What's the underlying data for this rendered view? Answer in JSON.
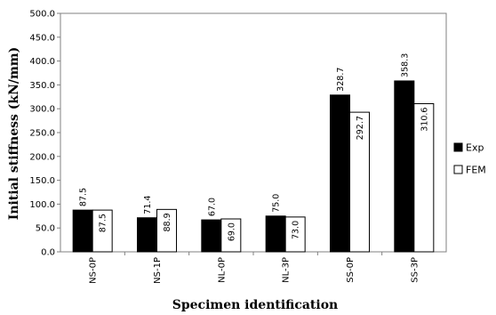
{
  "chart_data": {
    "type": "bar",
    "title": "",
    "xlabel": "Specimen identification",
    "ylabel": "Initial stiffness (kN/mm)",
    "categories": [
      "NS-0P",
      "NS-1P",
      "NL-0P",
      "NL-3P",
      "SS-0P",
      "SS-3P"
    ],
    "series": [
      {
        "name": "Exp",
        "values": [
          87.5,
          71.4,
          67.0,
          75.0,
          328.7,
          358.3
        ],
        "labels": [
          "87.5",
          "71.4",
          "67.0",
          "75.0",
          "328.7",
          "358.3"
        ],
        "color": "#000000"
      },
      {
        "name": "FEM",
        "values": [
          87.5,
          88.9,
          69.0,
          73.0,
          292.7,
          310.6
        ],
        "labels": [
          "87.5",
          "88.9",
          "69.0",
          "73.0",
          "292.7",
          "310.6"
        ],
        "color": "#ffffff"
      }
    ],
    "ylim": [
      0,
      500
    ],
    "yticks": [
      "0.0",
      "50.0",
      "100.0",
      "150.0",
      "200.0",
      "250.0",
      "300.0",
      "350.0",
      "400.0",
      "450.0",
      "500.0"
    ],
    "grid": false,
    "legend_position": "right"
  }
}
